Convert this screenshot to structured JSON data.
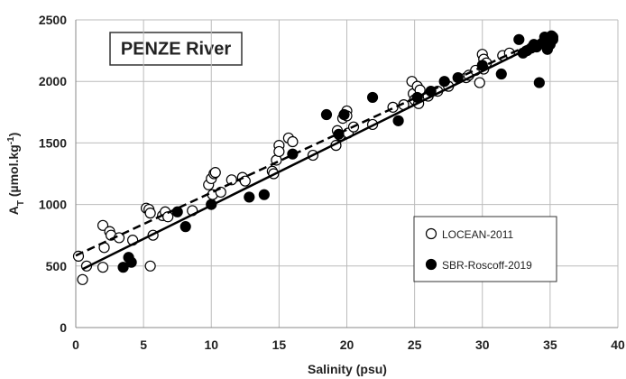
{
  "chart_data": {
    "type": "scatter",
    "title": "PENZE River",
    "x_label": "Salinity (psu)",
    "y_label": [
      "A",
      "T",
      " (µmol.kg",
      "-1",
      ")"
    ],
    "xlim": [
      0,
      40
    ],
    "xticks": [
      0,
      5,
      10,
      15,
      20,
      25,
      30,
      35,
      40
    ],
    "ylim": [
      0,
      2500
    ],
    "yticks": [
      0,
      500,
      1000,
      1500,
      2000,
      2500
    ],
    "grid": true,
    "legend": "lower right",
    "series": [
      {
        "name": "LOCEAN-2011",
        "marker": "open",
        "color": "#000000",
        "x": [
          0.2,
          0.5,
          0.8,
          2,
          2.1,
          2,
          2.5,
          2.6,
          3.2,
          4.2,
          5.2,
          5.4,
          5.5,
          5.5,
          5.7,
          6.4,
          6.6,
          6.8,
          8.6,
          9.8,
          10,
          10.2,
          10.3,
          10.1,
          10.7,
          11.5,
          12.3,
          12.5,
          14.5,
          14.6,
          14.8,
          15,
          15,
          15.7,
          16,
          17.5,
          19.2,
          19.3,
          19.5,
          19.7,
          20,
          20,
          20.1,
          20.5,
          21.9,
          23.4,
          24.2,
          24.8,
          24.9,
          25,
          25.2,
          25.4,
          25.3,
          26,
          26.7,
          27.5,
          28.8,
          29,
          29.5,
          29.8,
          30,
          30.1,
          30.3,
          30.1,
          31.5,
          32
        ],
        "values": [
          580,
          390,
          500,
          830,
          650,
          490,
          780,
          750,
          730,
          710,
          970,
          960,
          930,
          500,
          750,
          910,
          940,
          900,
          950,
          1160,
          1210,
          1250,
          1260,
          1080,
          1100,
          1200,
          1220,
          1190,
          1270,
          1250,
          1360,
          1480,
          1430,
          1540,
          1510,
          1400,
          1480,
          1600,
          1560,
          1700,
          1760,
          1720,
          1580,
          1630,
          1650,
          1790,
          1810,
          2000,
          1900,
          1850,
          1960,
          1930,
          1820,
          1880,
          1920,
          1960,
          2030,
          2050,
          2090,
          1990,
          2220,
          2180,
          2150,
          2100,
          2210,
          2230
        ]
      },
      {
        "name": "SBR-Roscoff-2019",
        "marker": "filled",
        "color": "#000000",
        "x": [
          3.5,
          3.9,
          4.1,
          7.5,
          8.1,
          10,
          12.8,
          13.9,
          16,
          18.5,
          19.4,
          19.8,
          21.9,
          23.8,
          25.2,
          26.2,
          27.2,
          28.2,
          30,
          31.4,
          32.7,
          33,
          33.3,
          33.6,
          34,
          34.2,
          34.4,
          34.6,
          34.8,
          34.9,
          35,
          35.1,
          35.2,
          34.7,
          33.8,
          35.2
        ],
        "values": [
          490,
          570,
          530,
          940,
          820,
          1000,
          1060,
          1080,
          1410,
          1730,
          1570,
          1730,
          1870,
          1680,
          1870,
          1920,
          2000,
          2030,
          2130,
          2060,
          2340,
          2230,
          2250,
          2270,
          2280,
          1990,
          2310,
          2360,
          2260,
          2330,
          2300,
          2370,
          2340,
          2290,
          2300,
          2360
        ]
      }
    ],
    "fit_lines": [
      {
        "style": "solid",
        "x": [
          0.5,
          35
        ],
        "values": [
          475,
          2355
        ]
      },
      {
        "style": "dashed",
        "x": [
          0,
          35
        ],
        "values": [
          585,
          2375
        ]
      }
    ]
  }
}
